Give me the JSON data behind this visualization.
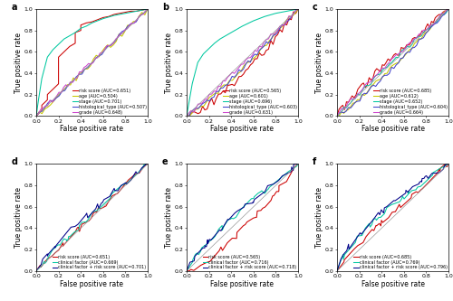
{
  "panels": [
    "a",
    "b",
    "c",
    "d",
    "e",
    "f"
  ],
  "top_legends": [
    [
      "risk score (AUC=0.651)",
      "age (AUC=0.504)",
      "stage (AUC=0.701)",
      "histological_type (AUC=0.507)",
      "grade (AUC=0.648)"
    ],
    [
      "risk score (AUC=0.565)",
      "age (AUC=0.601)",
      "stage (AUC=0.696)",
      "histological_type (AUC=0.603)",
      "grade (AUC=0.631)"
    ],
    [
      "risk score (AUC=0.685)",
      "age (AUC=0.612)",
      "stage (AUC=0.652)",
      "histological_type (AUC=0.604)",
      "grade (AUC=0.664)"
    ]
  ],
  "bottom_legends": [
    [
      "risk score (AUC=0.651)",
      "clinical factor (AUC=0.669)",
      "clinical factor + risk score (AUC=0.701)"
    ],
    [
      "risk score (AUC=0.565)",
      "clinical factor (AUC=0.716)",
      "clinical factor + risk score (AUC=0.718)"
    ],
    [
      "risk score (AUC=0.685)",
      "clinical factor (AUC=0.769)",
      "clinical factor + risk score (AUC=0.796)"
    ]
  ],
  "top_colors": [
    "#cc0000",
    "#c8c800",
    "#00c8a0",
    "#4444cc",
    "#cc44cc"
  ],
  "bottom_colors": [
    "#cc0000",
    "#00c8a0",
    "#000088"
  ],
  "diag_color": "#999999",
  "xlabel": "False positive rate",
  "ylabel": "True positive rate",
  "background_color": "#ffffff",
  "tick_fontsize": 4.5,
  "label_fontsize": 5.5,
  "legend_fontsize": 3.5,
  "title_fontsize": 7
}
